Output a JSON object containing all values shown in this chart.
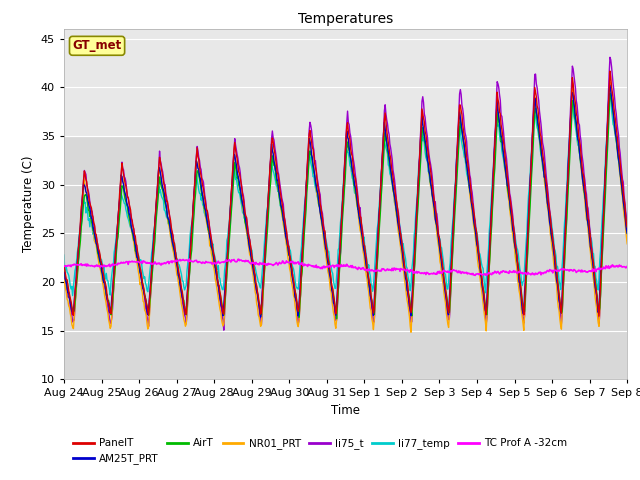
{
  "title": "Temperatures",
  "xlabel": "Time",
  "ylabel": "Temperature (C)",
  "ylim": [
    10,
    46
  ],
  "yticks": [
    10,
    15,
    20,
    25,
    30,
    35,
    40,
    45
  ],
  "background_color": "#ffffff",
  "plot_bg_color": "#d8d8d8",
  "shaded_band_color": "#e8e8e8",
  "shaded_band": [
    35,
    46
  ],
  "annotation_text": "GT_met",
  "annotation_bg": "#ffff99",
  "annotation_border": "#888800",
  "annotation_text_color": "#880000",
  "series": {
    "PanelT": {
      "color": "#dd0000",
      "lw": 1.0
    },
    "AM25T_PRT": {
      "color": "#0000cc",
      "lw": 1.0
    },
    "AirT": {
      "color": "#00bb00",
      "lw": 1.0
    },
    "NR01_PRT": {
      "color": "#ffaa00",
      "lw": 1.0
    },
    "li75_t": {
      "color": "#9900cc",
      "lw": 1.0
    },
    "li77_temp": {
      "color": "#00cccc",
      "lw": 1.0
    },
    "TC Prof A -32cm": {
      "color": "#ff00ff",
      "lw": 1.2
    }
  },
  "date_labels": [
    "Aug 24",
    "Aug 25",
    "Aug 26",
    "Aug 27",
    "Aug 28",
    "Aug 29",
    "Aug 30",
    "Aug 31",
    "Sep 1",
    "Sep 2",
    "Sep 3",
    "Sep 4",
    "Sep 5",
    "Sep 6",
    "Sep 7",
    "Sep 8"
  ]
}
